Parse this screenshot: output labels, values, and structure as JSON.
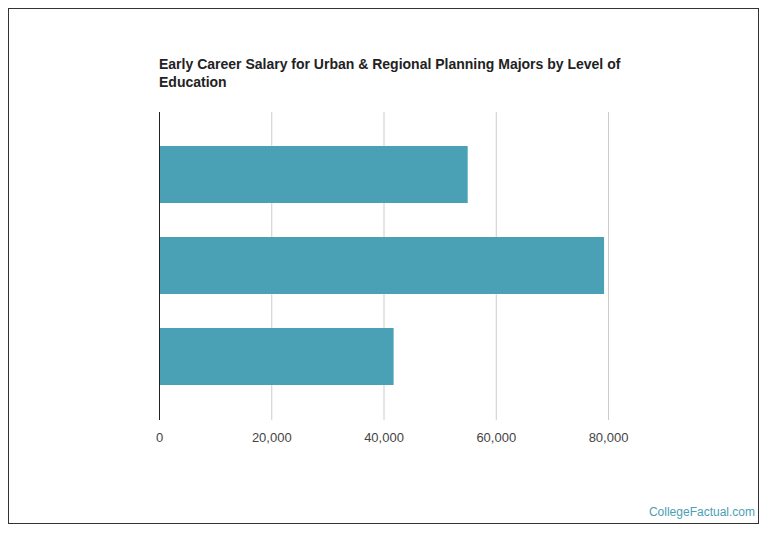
{
  "chart_data": {
    "type": "bar",
    "orientation": "horizontal",
    "title": "Early Career Salary for Urban & Regional Planning Majors by Level of Education",
    "caption": "CollegeFactual.com",
    "categories": [
      null,
      null,
      null
    ],
    "values": [
      55000,
      79300,
      41800
    ],
    "color": "#4aa0b5",
    "xlim": [
      0,
      80000
    ],
    "xticks": [
      0,
      {
        "value": 20000,
        "label": "20,000"
      },
      {
        "value": 40000,
        "label": "40,000"
      },
      {
        "value": 60000,
        "label": "60,000"
      },
      {
        "value": 80000,
        "label": "80,000"
      }
    ],
    "grid": true,
    "tick_labels": "x"
  }
}
